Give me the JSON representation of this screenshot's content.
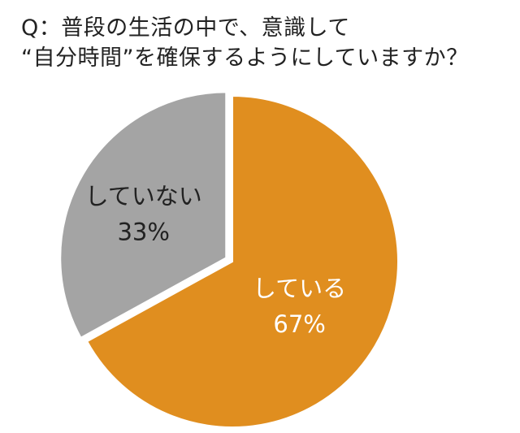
{
  "title": {
    "line1": "Q：普段の生活の中で、意識して",
    "line2": "“自分時間”を確保するようにしていますか？"
  },
  "colors": {
    "slice_yes": "#e08e1f",
    "slice_no": "#a4a4a4",
    "label_on_yes": "#ffffff",
    "label_on_no": "#222222"
  },
  "chart_data": {
    "type": "pie",
    "title": "Q：普段の生活の中で、意識して “自分時間”を確保するようにしていますか？",
    "categories": [
      "している",
      "していない"
    ],
    "values": [
      67,
      33
    ],
    "labels": [
      "67%",
      "33%"
    ],
    "legend": "none"
  }
}
